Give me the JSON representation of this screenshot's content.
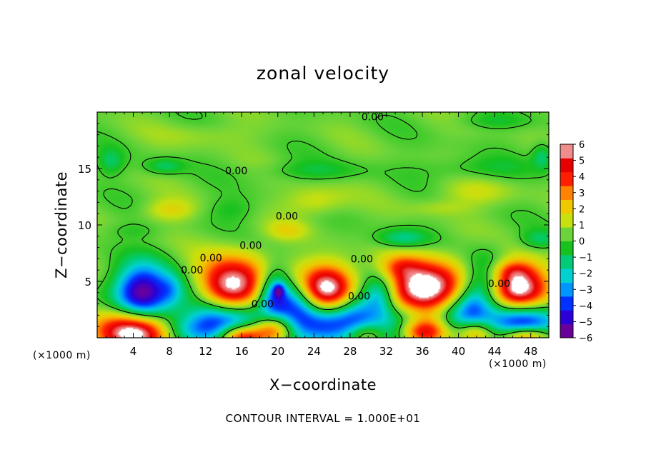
{
  "chart_data": {
    "type": "heatmap",
    "title": "zonal velocity",
    "xlabel": "X−coordinate",
    "ylabel": "Z−coordinate",
    "x_unit_label": "(×1000 m)",
    "z_unit_label": "(×1000 m)",
    "footer": "CONTOUR INTERVAL = 1.000E+01",
    "xlim": [
      0,
      50
    ],
    "ylim": [
      0,
      20
    ],
    "x_ticks": [
      "4",
      "8",
      "12",
      "16",
      "20",
      "24",
      "28",
      "32",
      "36",
      "40",
      "44",
      "48"
    ],
    "y_ticks": [
      "5",
      "10",
      "15"
    ],
    "colorbar": {
      "ticks": [
        "6",
        "5",
        "4",
        "3",
        "2",
        "1",
        "0",
        "−1",
        "−2",
        "−3",
        "−4",
        "−5",
        "−6"
      ],
      "range": [
        -6,
        6
      ],
      "colors": [
        "#6a009a",
        "#2a00d6",
        "#0032ff",
        "#0096ff",
        "#00d2d2",
        "#00cc78",
        "#17c11e",
        "#6bd43a",
        "#c8e00f",
        "#f0c800",
        "#ff8200",
        "#ff1e00",
        "#e60000",
        "#f08c8c"
      ]
    },
    "contour_labels": [
      {
        "text": "0.00",
        "x": 30.5,
        "z": 19.6
      },
      {
        "text": "0.00",
        "x": 15.4,
        "z": 14.8
      },
      {
        "text": "0.00",
        "x": 21.0,
        "z": 10.8
      },
      {
        "text": "0.00",
        "x": 17.0,
        "z": 8.2
      },
      {
        "text": "0.00",
        "x": 12.6,
        "z": 7.1
      },
      {
        "text": "0.00",
        "x": 10.5,
        "z": 6.0
      },
      {
        "text": "0.00",
        "x": 18.3,
        "z": 3.0
      },
      {
        "text": "0.00",
        "x": 29.3,
        "z": 7.0
      },
      {
        "text": "0.00",
        "x": 29.0,
        "z": 3.7
      },
      {
        "text": "0.00",
        "x": 44.5,
        "z": 4.8
      }
    ],
    "features": [
      {
        "x": 5.0,
        "z": 4.0,
        "sx": 2.2,
        "sz": 1.7,
        "amp": -6.5
      },
      {
        "x": 4.2,
        "z": 0.5,
        "sx": 3.0,
        "sz": 1.3,
        "amp": 6.8
      },
      {
        "x": 8.2,
        "z": 4.3,
        "sx": 1.0,
        "sz": 1.0,
        "amp": -1.6
      },
      {
        "x": 10.4,
        "z": 3.8,
        "sx": 1.5,
        "sz": 1.3,
        "amp": -1.6
      },
      {
        "x": 12.5,
        "z": 2.2,
        "sx": 1.6,
        "sz": 1.6,
        "amp": -2.0
      },
      {
        "x": 9.8,
        "z": 0.6,
        "sx": 2.2,
        "sz": 1.0,
        "amp": -2.5
      },
      {
        "x": 15.0,
        "z": 4.5,
        "sx": 2.8,
        "sz": 1.8,
        "amp": 7.0
      },
      {
        "x": 15.2,
        "z": 1.4,
        "sx": 2.6,
        "sz": 1.4,
        "amp": -5.6
      },
      {
        "x": 16.0,
        "z": 0.1,
        "sx": 1.8,
        "sz": 0.8,
        "amp": 6.8
      },
      {
        "x": 19.6,
        "z": 3.8,
        "sx": 1.3,
        "sz": 1.6,
        "amp": -5.0
      },
      {
        "x": 20.1,
        "z": 4.2,
        "sx": 0.4,
        "sz": 0.4,
        "amp": -3.0
      },
      {
        "x": 19.5,
        "z": 0.8,
        "sx": 1.5,
        "sz": 0.9,
        "amp": 4.5
      },
      {
        "x": 22.2,
        "z": 3.2,
        "sx": 1.4,
        "sz": 1.5,
        "amp": -3.5
      },
      {
        "x": 25.8,
        "z": 4.3,
        "sx": 2.6,
        "sz": 1.6,
        "amp": 7.0
      },
      {
        "x": 24.8,
        "z": 1.2,
        "sx": 2.8,
        "sz": 1.4,
        "amp": -5.0
      },
      {
        "x": 28.8,
        "z": 2.6,
        "sx": 1.8,
        "sz": 2.3,
        "amp": -3.5
      },
      {
        "x": 29.6,
        "z": 0.3,
        "sx": 1.6,
        "sz": 0.8,
        "amp": 3.5
      },
      {
        "x": 31.4,
        "z": 3.8,
        "sx": 1.3,
        "sz": 1.3,
        "amp": -3.5
      },
      {
        "x": 36.4,
        "z": 4.2,
        "sx": 3.2,
        "sz": 1.8,
        "amp": 7.5
      },
      {
        "x": 34.5,
        "z": 1.1,
        "sx": 2.6,
        "sz": 1.5,
        "amp": -4.5
      },
      {
        "x": 36.0,
        "z": 0.5,
        "sx": 2.0,
        "sz": 0.9,
        "amp": 6.8
      },
      {
        "x": 39.3,
        "z": 2.0,
        "sx": 1.6,
        "sz": 1.3,
        "amp": -2.5
      },
      {
        "x": 41.5,
        "z": 2.8,
        "sx": 1.4,
        "sz": 2.0,
        "amp": -3.5
      },
      {
        "x": 41.8,
        "z": 0.5,
        "sx": 1.4,
        "sz": 0.8,
        "amp": 4.0
      },
      {
        "x": 43.5,
        "z": 4.8,
        "sx": 1.6,
        "sz": 1.8,
        "amp": -3.5
      },
      {
        "x": 46.5,
        "z": 4.4,
        "sx": 2.6,
        "sz": 1.6,
        "amp": 7.0
      },
      {
        "x": 47.0,
        "z": 1.4,
        "sx": 2.8,
        "sz": 1.3,
        "amp": -6.0
      },
      {
        "x": 47.5,
        "z": 0.2,
        "sx": 2.0,
        "sz": 0.6,
        "amp": 5.0
      },
      {
        "x": 33.5,
        "z": 6.3,
        "sx": 1.5,
        "sz": 0.7,
        "amp": 1.6
      },
      {
        "x": 45.8,
        "z": 6.0,
        "sx": 1.6,
        "sz": 0.6,
        "amp": 1.4
      },
      {
        "x": 33.8,
        "z": 8.8,
        "sx": 2.0,
        "sz": 0.6,
        "amp": -2.0
      },
      {
        "x": 49.0,
        "z": 8.7,
        "sx": 1.5,
        "sz": 0.6,
        "amp": -1.5
      },
      {
        "x": 21.0,
        "z": 9.5,
        "sx": 1.6,
        "sz": 0.6,
        "amp": 1.3
      },
      {
        "x": 8.0,
        "z": 11.3,
        "sx": 2.0,
        "sz": 0.7,
        "amp": 1.5
      },
      {
        "x": 24.2,
        "z": 12.1,
        "sx": 2.4,
        "sz": 0.9,
        "amp": 1.4
      },
      {
        "x": 42.0,
        "z": 12.8,
        "sx": 3.0,
        "sz": 0.8,
        "amp": 1.0
      },
      {
        "x": 15.0,
        "z": 11.4,
        "sx": 2.0,
        "sz": 0.8,
        "amp": -0.8
      },
      {
        "x": 7.5,
        "z": 15.2,
        "sx": 1.5,
        "sz": 0.5,
        "amp": -1.5
      },
      {
        "x": 24.0,
        "z": 14.8,
        "sx": 4.0,
        "sz": 0.6,
        "amp": -1.0
      },
      {
        "x": 42.0,
        "z": 15.0,
        "sx": 4.0,
        "sz": 0.7,
        "amp": -0.9
      },
      {
        "x": 1.5,
        "z": 15.6,
        "sx": 1.0,
        "sz": 0.8,
        "amp": -1.4
      },
      {
        "x": 49.3,
        "z": 16.1,
        "sx": 0.8,
        "sz": 0.8,
        "amp": -1.8
      },
      {
        "x": 44.0,
        "z": 19.2,
        "sx": 3.0,
        "sz": 0.5,
        "amp": -0.8
      },
      {
        "x": 12.0,
        "z": 18.0,
        "sx": 4.0,
        "sz": 0.8,
        "amp": 0.6
      },
      {
        "x": 38.0,
        "z": 11.5,
        "sx": 2.5,
        "sz": 0.5,
        "amp": 0.7
      },
      {
        "x": 4.0,
        "z": 9.5,
        "sx": 2.0,
        "sz": 0.5,
        "amp": -0.6
      }
    ]
  }
}
